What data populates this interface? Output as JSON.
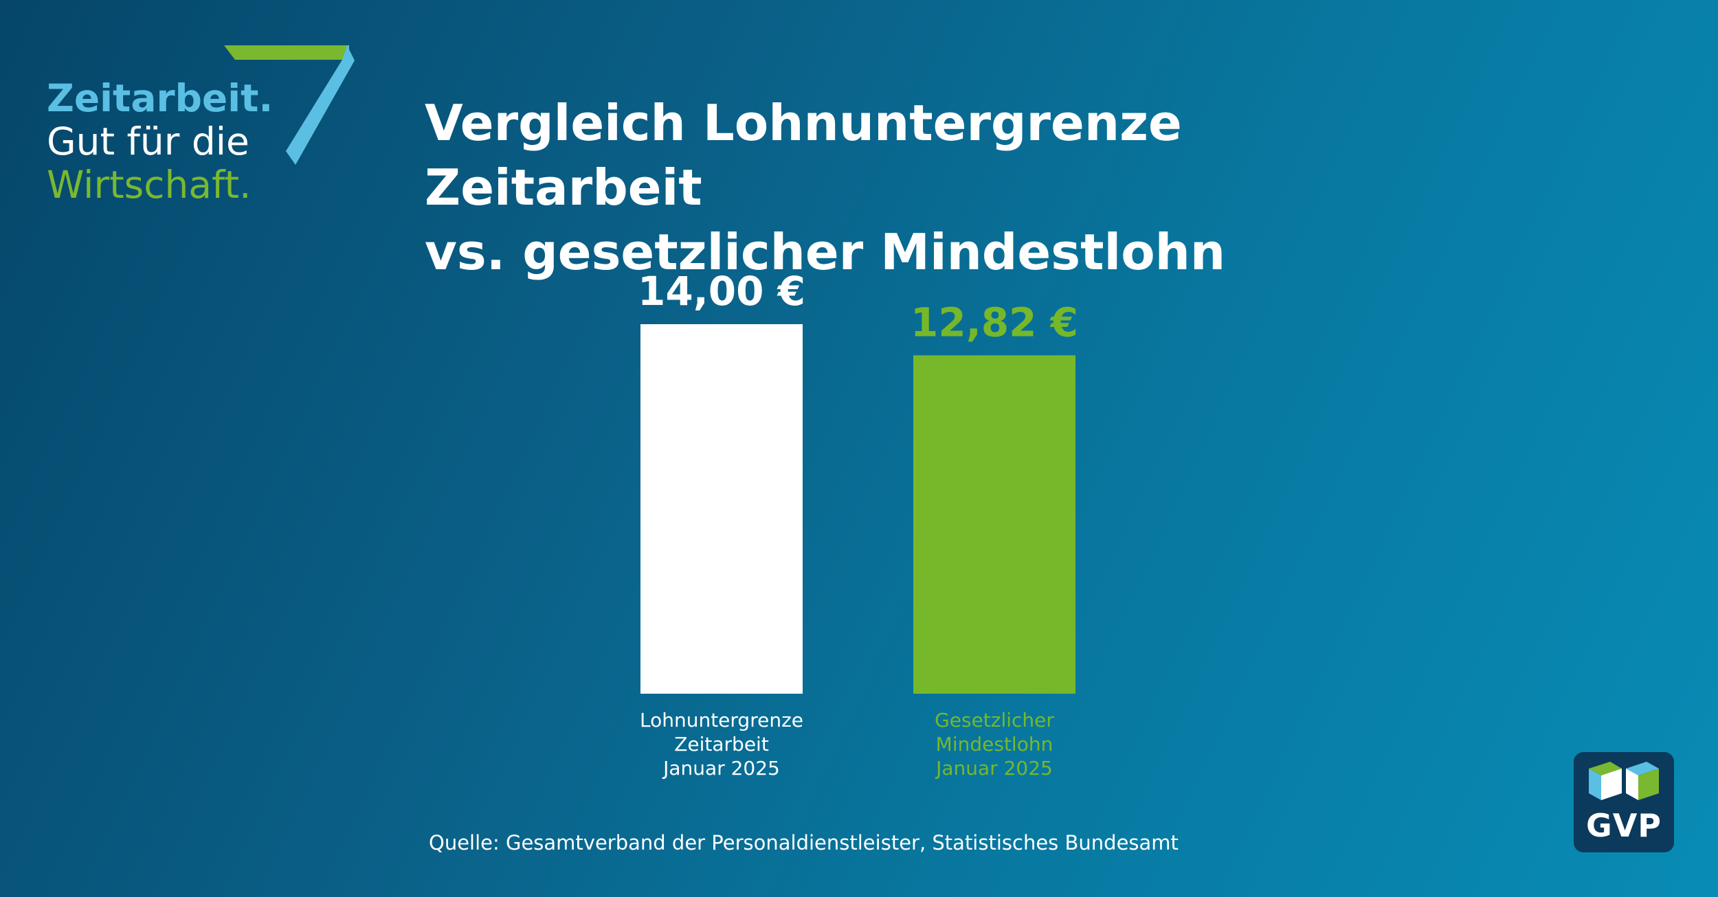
{
  "brand": {
    "line1": "Zeitarbeit.",
    "line2": "Gut für die",
    "line3": "Wirtschaft."
  },
  "title": {
    "line1": "Vergleich Lohnuntergrenze Zeitarbeit",
    "line2": "vs. gesetzlicher Mindestlohn"
  },
  "chart_data": {
    "type": "bar",
    "categories": [
      [
        "Lohnuntergrenze",
        "Zeitarbeit",
        "Januar 2025"
      ],
      [
        "Gesetzlicher",
        "Mindestlohn",
        "Januar 2025"
      ]
    ],
    "values": [
      14.0,
      12.82
    ],
    "value_labels": [
      "14,00 €",
      "12,82 €"
    ],
    "colors": [
      "#ffffff",
      "#76b82a"
    ],
    "label_colors": [
      "#ffffff",
      "#76b82a"
    ],
    "ylim": [
      0,
      14.0
    ],
    "grid": false,
    "legend": "none",
    "title": "",
    "xlabel": "",
    "ylabel": ""
  },
  "source": "Quelle: Gesamtverband der Personaldienstleister, Statistisches Bundesamt",
  "logo": {
    "text": "GVP"
  },
  "colors": {
    "accent_green": "#76b82a",
    "accent_blue": "#5bbfe3",
    "logo_bg": "#0b3a5c"
  }
}
